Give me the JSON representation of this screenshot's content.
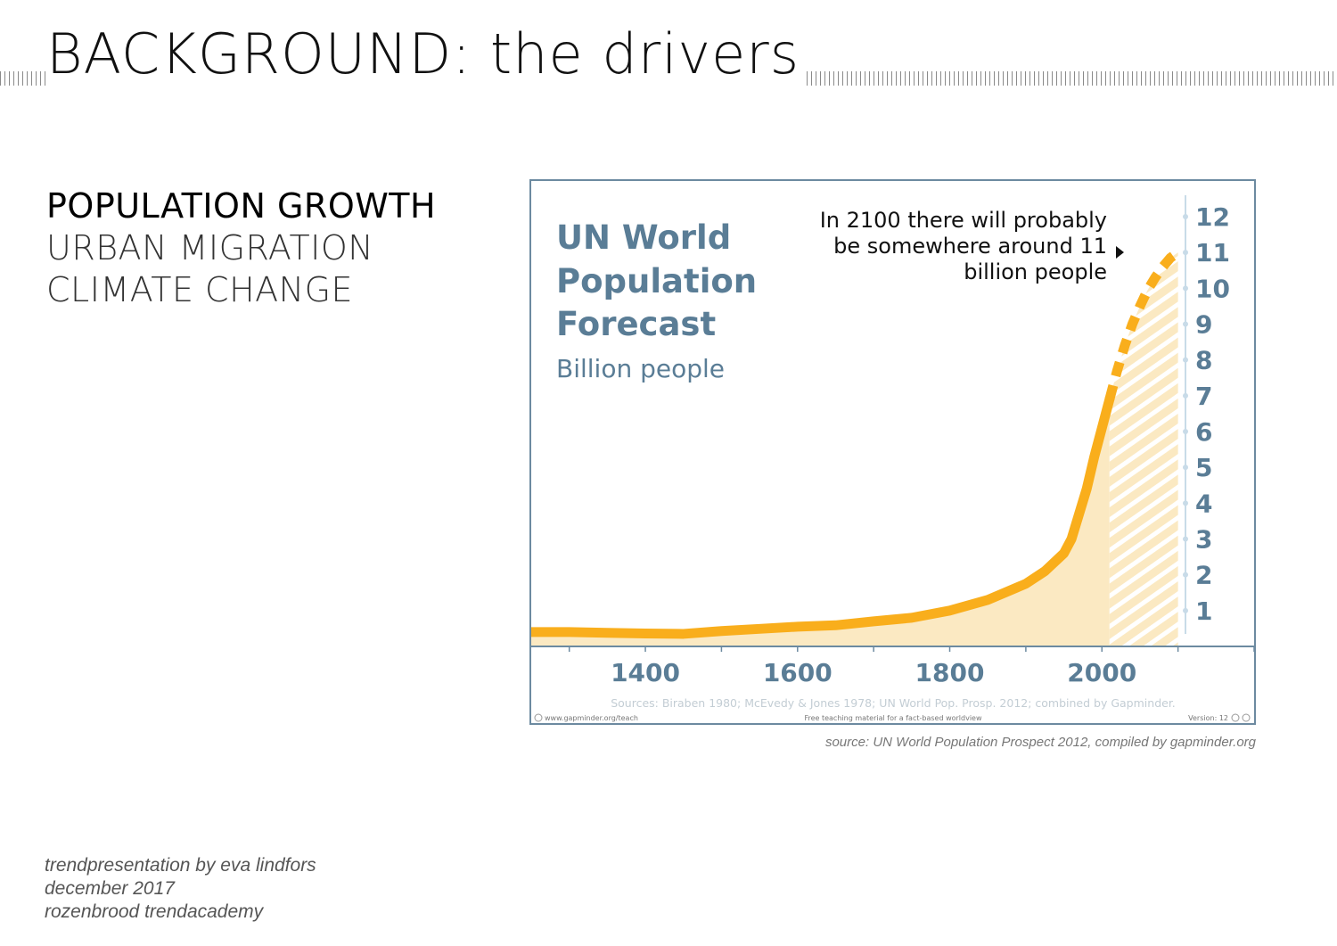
{
  "slide": {
    "title": "BACKGROUND: the drivers",
    "drivers": [
      "POPULATION GROWTH",
      "URBAN MIGRATION",
      "CLIMATE CHANGE"
    ],
    "source_credit": "source: UN World Population Prospect 2012, compiled by gapminder.org",
    "footer": [
      "trendpresentation by eva lindfors",
      "december 2017",
      "rozenbrood trendacademy"
    ]
  },
  "chart_data": {
    "type": "area",
    "title": "UN World Population Forecast",
    "title_lines": [
      "UN World",
      "Population",
      "Forecast"
    ],
    "subtitle": "Billion people",
    "annotation": [
      "In 2100 there will probably",
      "be somewhere around 11",
      "billion people"
    ],
    "sources": "Sources: Biraben 1980; McEvedy & Jones 1978; UN World Pop. Prosp. 2012; combined by Gapminder.",
    "footer_left": "www.gapminder.org/teach",
    "footer_center": "Free teaching material for a fact-based worldview",
    "footer_right": "Version: 12",
    "xlim": [
      1250,
      2200
    ],
    "ylim": [
      0,
      12
    ],
    "x_ticks": [
      1400,
      1600,
      1800,
      2000
    ],
    "y_ticks": [
      1,
      2,
      3,
      4,
      5,
      6,
      7,
      8,
      9,
      10,
      11,
      12
    ],
    "colors": {
      "line": "#f9ae1c",
      "fill": "#fbe9c2",
      "text": "#5a7d96",
      "axis": "#9fb7c7"
    },
    "series": [
      {
        "style": "solid",
        "x": [
          1250,
          1300,
          1350,
          1400,
          1450,
          1500,
          1550,
          1600,
          1650,
          1700,
          1750,
          1800,
          1850,
          1900,
          1925,
          1950,
          1960,
          1970,
          1980,
          1990,
          2000,
          2010
        ],
        "y": [
          0.4,
          0.4,
          0.38,
          0.36,
          0.35,
          0.43,
          0.49,
          0.55,
          0.59,
          0.7,
          0.8,
          1.0,
          1.3,
          1.75,
          2.1,
          2.6,
          3.0,
          3.7,
          4.4,
          5.3,
          6.1,
          6.9
        ]
      },
      {
        "style": "dashed",
        "x": [
          2010,
          2020,
          2030,
          2040,
          2050,
          2060,
          2070,
          2080,
          2090,
          2100
        ],
        "y": [
          6.9,
          7.7,
          8.4,
          9.0,
          9.5,
          9.95,
          10.3,
          10.6,
          10.85,
          11.0
        ]
      }
    ]
  }
}
